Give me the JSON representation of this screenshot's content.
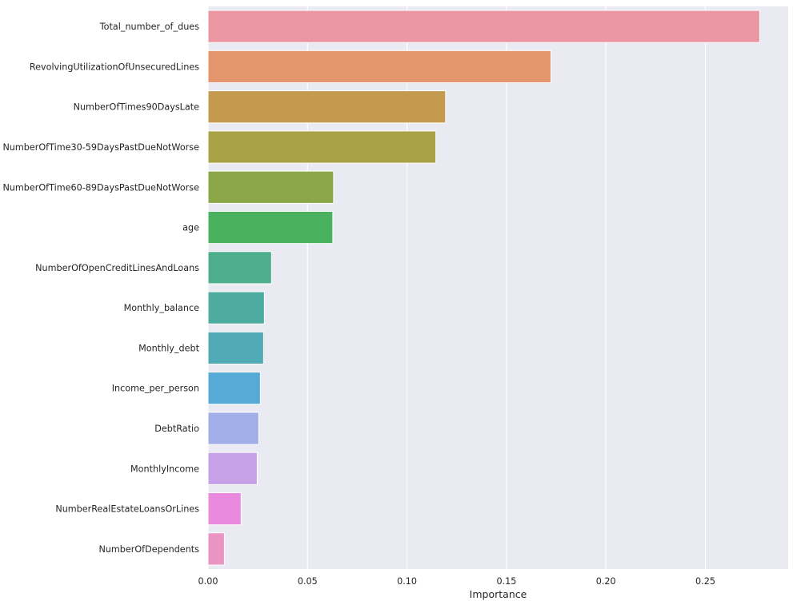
{
  "chart_data": {
    "type": "bar",
    "orientation": "horizontal",
    "title": "",
    "xlabel": "Importance",
    "ylabel": "",
    "xlim": [
      0,
      0.29
    ],
    "xticks": [
      0.0,
      0.05,
      0.1,
      0.15,
      0.2,
      0.25
    ],
    "xtick_labels": [
      "0.00",
      "0.05",
      "0.10",
      "0.15",
      "0.20",
      "0.25"
    ],
    "grid": true,
    "categories": [
      "Total_number_of_dues",
      "RevolvingUtilizationOfUnsecuredLines",
      "NumberOfTimes90DaysLate",
      "NumberOfTime30-59DaysPastDueNotWorse",
      "NumberOfTime60-89DaysPastDueNotWorse",
      "age",
      "NumberOfOpenCreditLinesAndLoans",
      "Monthly_balance",
      "Monthly_debt",
      "Income_per_person",
      "DebtRatio",
      "MonthlyIncome",
      "NumberRealEstateLoansOrLines",
      "NumberOfDependents"
    ],
    "values": [
      0.2773,
      0.1724,
      0.1194,
      0.1145,
      0.0631,
      0.0627,
      0.0319,
      0.0283,
      0.0279,
      0.0263,
      0.0255,
      0.0247,
      0.0166,
      0.0082
    ],
    "colors": [
      "#ea96a3",
      "#e5956c",
      "#c39a4e",
      "#a9a247",
      "#8aa848",
      "#4ab25e",
      "#4cae8d",
      "#4eab9f",
      "#50aab5",
      "#56abd6",
      "#a1aee8",
      "#c6a1e7",
      "#e98ade",
      "#e994c2"
    ]
  },
  "style": {
    "plot_background": "#eaeaf2",
    "grid_color": "#ffffff"
  }
}
